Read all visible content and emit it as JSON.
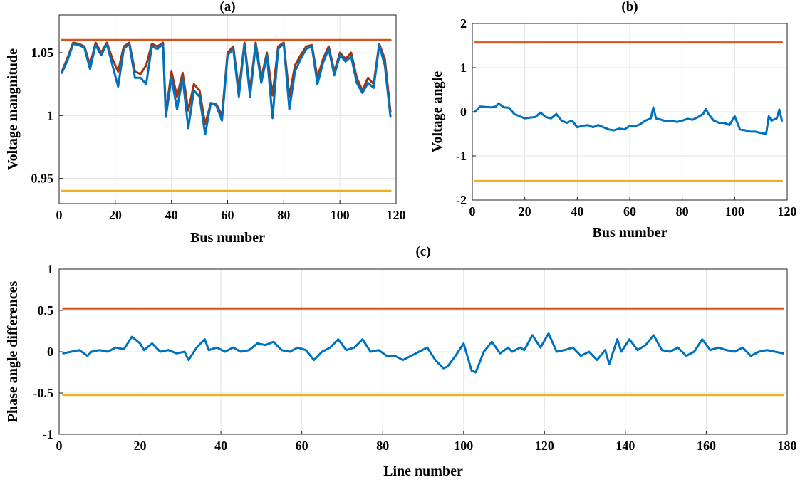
{
  "chart_data": [
    {
      "type": "line",
      "title": "(a)",
      "xlabel": "Bus number",
      "ylabel": "Voltage mangnitude",
      "xlim": [
        0,
        120
      ],
      "ylim": [
        0.93,
        1.08
      ],
      "xticks": [
        0,
        20,
        40,
        60,
        80,
        100,
        120
      ],
      "xtick_labels": [
        "0",
        "20",
        "40",
        "60",
        "80",
        "100",
        "120"
      ],
      "yticks": [
        0.95,
        1,
        1.05
      ],
      "ytick_labels": [
        "0.95",
        "1",
        "1.05"
      ],
      "grid": true,
      "colors": {
        "upper": "#d95319",
        "lower": "#edb120",
        "series_a": "#a2340c",
        "series_b": "#0072bd"
      },
      "series": [
        {
          "role": "upper",
          "x": [
            1,
            118
          ],
          "values": [
            1.06,
            1.06
          ]
        },
        {
          "role": "lower",
          "x": [
            1,
            118
          ],
          "values": [
            0.94,
            0.94
          ]
        },
        {
          "role": "series_a",
          "x": [
            1,
            3,
            5,
            7,
            9,
            11,
            13,
            15,
            17,
            19,
            21,
            23,
            25,
            27,
            29,
            31,
            33,
            35,
            37,
            38,
            40,
            42,
            44,
            46,
            48,
            50,
            52,
            54,
            56,
            58,
            60,
            62,
            64,
            66,
            68,
            70,
            72,
            74,
            76,
            78,
            80,
            82,
            84,
            86,
            88,
            90,
            92,
            94,
            96,
            98,
            100,
            102,
            104,
            106,
            108,
            110,
            112,
            114,
            116,
            118
          ],
          "values": [
            1.035,
            1.046,
            1.058,
            1.057,
            1.055,
            1.04,
            1.058,
            1.05,
            1.058,
            1.045,
            1.035,
            1.055,
            1.058,
            1.035,
            1.033,
            1.04,
            1.057,
            1.055,
            1.058,
            1.002,
            1.035,
            1.015,
            1.034,
            1.004,
            1.025,
            1.02,
            0.993,
            1.01,
            1.009,
            1.0,
            1.05,
            1.055,
            1.02,
            1.058,
            1.02,
            1.058,
            1.03,
            1.05,
            1.016,
            1.055,
            1.058,
            1.015,
            1.04,
            1.048,
            1.055,
            1.056,
            1.03,
            1.045,
            1.055,
            1.035,
            1.05,
            1.045,
            1.05,
            1.03,
            1.02,
            1.03,
            1.025,
            1.057,
            1.045,
            1.003
          ]
        },
        {
          "role": "series_b",
          "x": [
            1,
            3,
            5,
            7,
            9,
            11,
            13,
            15,
            17,
            19,
            21,
            23,
            25,
            27,
            29,
            31,
            33,
            35,
            37,
            38,
            40,
            42,
            44,
            46,
            48,
            50,
            52,
            54,
            56,
            58,
            60,
            62,
            64,
            66,
            68,
            70,
            72,
            74,
            76,
            78,
            80,
            82,
            84,
            86,
            88,
            90,
            92,
            94,
            96,
            98,
            100,
            102,
            104,
            106,
            108,
            110,
            112,
            114,
            116,
            118
          ],
          "values": [
            1.034,
            1.044,
            1.057,
            1.056,
            1.054,
            1.037,
            1.056,
            1.048,
            1.057,
            1.04,
            1.023,
            1.053,
            1.057,
            1.03,
            1.03,
            1.025,
            1.055,
            1.053,
            1.057,
            0.999,
            1.03,
            1.005,
            1.03,
            0.99,
            1.02,
            1.015,
            0.985,
            1.01,
            1.008,
            0.996,
            1.048,
            1.053,
            1.015,
            1.057,
            1.015,
            1.056,
            1.026,
            1.048,
            0.998,
            1.053,
            1.057,
            1.005,
            1.035,
            1.045,
            1.053,
            1.055,
            1.025,
            1.042,
            1.053,
            1.032,
            1.048,
            1.043,
            1.047,
            1.026,
            1.018,
            1.026,
            1.022,
            1.056,
            1.04,
            0.999
          ]
        }
      ]
    },
    {
      "type": "line",
      "title": "(b)",
      "xlabel": "Bus number",
      "ylabel": "Voltage angle",
      "xlim": [
        0,
        120
      ],
      "ylim": [
        -2,
        2
      ],
      "xticks": [
        0,
        20,
        40,
        60,
        80,
        100,
        120
      ],
      "xtick_labels": [
        "0",
        "20",
        "40",
        "60",
        "80",
        "100",
        "120"
      ],
      "yticks": [
        -2,
        -1,
        0,
        1,
        2
      ],
      "ytick_labels": [
        "-2",
        "-1",
        "0",
        "1",
        "2"
      ],
      "grid": true,
      "colors": {
        "upper": "#d95319",
        "lower": "#edb120",
        "series": "#0072bd"
      },
      "series": [
        {
          "role": "upper",
          "x": [
            1,
            118
          ],
          "values": [
            1.5708,
            1.5708
          ]
        },
        {
          "role": "lower",
          "x": [
            1,
            118
          ],
          "values": [
            -1.5708,
            -1.5708
          ]
        },
        {
          "role": "series",
          "x": [
            1,
            3,
            5,
            7,
            9,
            10,
            12,
            14,
            16,
            18,
            20,
            22,
            24,
            26,
            28,
            30,
            32,
            34,
            36,
            38,
            40,
            42,
            44,
            46,
            48,
            50,
            52,
            54,
            56,
            58,
            60,
            62,
            64,
            66,
            68,
            69,
            70,
            72,
            74,
            76,
            78,
            80,
            82,
            84,
            86,
            88,
            89,
            90,
            92,
            94,
            96,
            98,
            100,
            102,
            104,
            106,
            108,
            110,
            112,
            113,
            114,
            116,
            117,
            118
          ],
          "values": [
            0.0,
            0.12,
            0.11,
            0.1,
            0.12,
            0.19,
            0.1,
            0.09,
            -0.05,
            -0.1,
            -0.15,
            -0.13,
            -0.12,
            -0.02,
            -0.12,
            -0.15,
            -0.05,
            -0.2,
            -0.25,
            -0.2,
            -0.35,
            -0.32,
            -0.3,
            -0.35,
            -0.3,
            -0.35,
            -0.4,
            -0.42,
            -0.38,
            -0.4,
            -0.32,
            -0.33,
            -0.28,
            -0.2,
            -0.15,
            0.1,
            -0.15,
            -0.18,
            -0.22,
            -0.2,
            -0.23,
            -0.2,
            -0.16,
            -0.18,
            -0.12,
            -0.05,
            0.07,
            -0.05,
            -0.2,
            -0.25,
            -0.25,
            -0.3,
            -0.1,
            -0.4,
            -0.42,
            -0.45,
            -0.45,
            -0.48,
            -0.5,
            -0.1,
            -0.2,
            -0.15,
            0.05,
            -0.2
          ]
        }
      ]
    },
    {
      "type": "line",
      "title": "(c)",
      "xlabel": "Line number",
      "ylabel": "Phase angle differences",
      "xlim": [
        0,
        180
      ],
      "ylim": [
        -1,
        1
      ],
      "xticks": [
        0,
        20,
        40,
        60,
        80,
        100,
        120,
        140,
        160,
        180
      ],
      "xtick_labels": [
        "0",
        "20",
        "40",
        "60",
        "80",
        "100",
        "120",
        "140",
        "160",
        "180"
      ],
      "yticks": [
        -1,
        -0.5,
        0,
        0.5,
        1
      ],
      "ytick_labels": [
        "-1",
        "-0.5",
        "0",
        "0.5",
        "1"
      ],
      "grid": true,
      "colors": {
        "upper": "#d95319",
        "lower": "#edb120",
        "series": "#0072bd"
      },
      "series": [
        {
          "role": "upper",
          "x": [
            1,
            179
          ],
          "values": [
            0.5236,
            0.5236
          ]
        },
        {
          "role": "lower",
          "x": [
            1,
            179
          ],
          "values": [
            -0.5236,
            -0.5236
          ]
        },
        {
          "role": "series",
          "x": [
            1,
            3,
            5,
            7,
            8,
            10,
            12,
            14,
            16,
            18,
            20,
            21,
            23,
            25,
            27,
            29,
            31,
            32,
            34,
            36,
            37,
            39,
            41,
            43,
            45,
            47,
            49,
            51,
            53,
            55,
            57,
            59,
            61,
            63,
            65,
            67,
            69,
            71,
            73,
            75,
            77,
            79,
            81,
            83,
            85,
            87,
            89,
            91,
            93,
            95,
            96,
            98,
            100,
            102,
            103,
            105,
            107,
            109,
            111,
            112,
            114,
            115,
            117,
            119,
            121,
            123,
            125,
            127,
            129,
            131,
            133,
            135,
            136,
            138,
            139,
            141,
            143,
            145,
            147,
            149,
            151,
            153,
            155,
            157,
            159,
            161,
            163,
            165,
            167,
            169,
            171,
            173,
            175,
            177,
            179
          ],
          "values": [
            -0.02,
            0.0,
            0.02,
            -0.05,
            0.0,
            0.02,
            0.0,
            0.05,
            0.03,
            0.18,
            0.1,
            0.02,
            0.1,
            0.0,
            0.02,
            -0.02,
            0.0,
            -0.1,
            0.05,
            0.15,
            0.02,
            0.05,
            0.0,
            0.05,
            0.0,
            0.02,
            0.1,
            0.08,
            0.12,
            0.02,
            0.0,
            0.05,
            0.02,
            -0.1,
            0.0,
            0.05,
            0.15,
            0.02,
            0.05,
            0.15,
            0.0,
            0.02,
            -0.05,
            -0.05,
            -0.1,
            -0.05,
            0.0,
            0.05,
            -0.1,
            -0.2,
            -0.18,
            -0.05,
            0.1,
            -0.23,
            -0.25,
            0.0,
            0.12,
            -0.02,
            0.05,
            0.0,
            0.05,
            0.02,
            0.2,
            0.05,
            0.22,
            0.0,
            0.02,
            0.05,
            -0.05,
            0.0,
            -0.1,
            0.02,
            -0.15,
            0.15,
            0.0,
            0.15,
            0.02,
            0.08,
            0.2,
            0.02,
            0.0,
            0.05,
            -0.05,
            0.0,
            0.15,
            0.02,
            0.05,
            0.02,
            0.0,
            0.05,
            -0.05,
            0.0,
            0.02,
            0.0,
            -0.02
          ]
        }
      ]
    }
  ]
}
